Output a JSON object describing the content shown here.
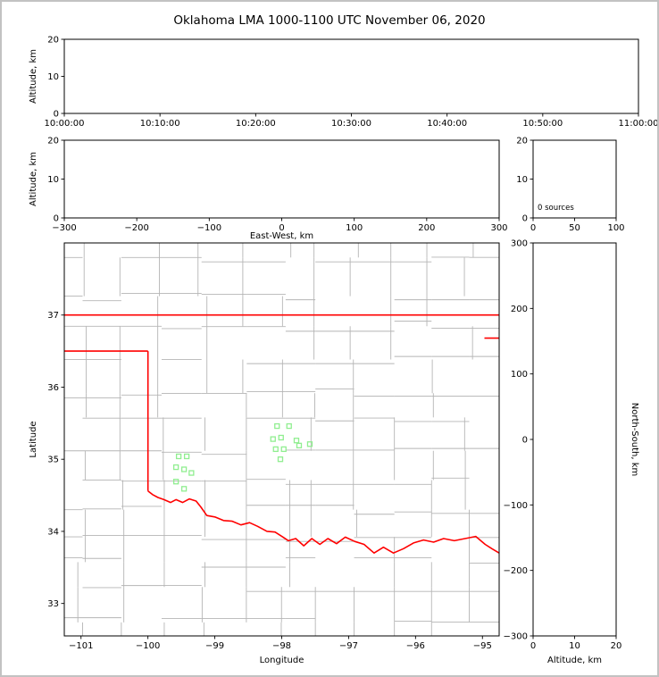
{
  "title": "Oklahoma LMA 1000-1100 UTC November 06, 2020",
  "colors": {
    "axis": "#000000",
    "state_border": "#ff0000",
    "county_line": "#b5b5b5",
    "source_marker": "#90ee90",
    "figure_frame": "#c2c2c2",
    "background": "#ffffff"
  },
  "chart_data": [
    {
      "id": "time_altitude",
      "type": "scatter",
      "title": "",
      "xlabel": "",
      "ylabel": "Altitude, km",
      "x_tick_labels": [
        "10:00:00",
        "10:10:00",
        "10:20:00",
        "10:30:00",
        "10:40:00",
        "10:50:00",
        "11:00:00"
      ],
      "ylim": [
        0,
        20
      ],
      "y_ticks": [
        0,
        10,
        20
      ],
      "points": []
    },
    {
      "id": "ew_altitude",
      "type": "scatter",
      "xlabel": "East-West, km",
      "ylabel": "Altitude, km",
      "xlim": [
        -300,
        300
      ],
      "x_ticks": [
        -300,
        -200,
        -100,
        0,
        100,
        200,
        300
      ],
      "ylim": [
        0,
        20
      ],
      "y_ticks": [
        0,
        10,
        20
      ],
      "points": []
    },
    {
      "id": "altitude_histogram",
      "type": "line",
      "xlabel": "",
      "ylabel": "",
      "xlim": [
        0,
        100
      ],
      "x_ticks": [
        0,
        50,
        100
      ],
      "ylim": [
        0,
        20
      ],
      "y_ticks": [
        0,
        10,
        20
      ],
      "annotation": "0 sources",
      "points": []
    },
    {
      "id": "map",
      "type": "scatter",
      "xlabel": "Longitude",
      "ylabel": "Latitude",
      "xlim": [
        -101.25,
        -94.75
      ],
      "x_ticks": [
        -101,
        -100,
        -99,
        -98,
        -97,
        -96,
        -95
      ],
      "ylim": [
        32.55,
        38.0
      ],
      "y_ticks": [
        33,
        34,
        35,
        36,
        37
      ],
      "sources": [
        [
          -98.07,
          35.46
        ],
        [
          -97.89,
          35.46
        ],
        [
          -98.13,
          35.28
        ],
        [
          -98.01,
          35.3
        ],
        [
          -97.78,
          35.26
        ],
        [
          -98.09,
          35.14
        ],
        [
          -97.97,
          35.14
        ],
        [
          -98.02,
          35.0
        ],
        [
          -97.74,
          35.19
        ],
        [
          -97.58,
          35.21
        ],
        [
          -99.54,
          35.04
        ],
        [
          -99.42,
          35.04
        ],
        [
          -99.58,
          34.89
        ],
        [
          -99.46,
          34.86
        ],
        [
          -99.35,
          34.81
        ],
        [
          -99.58,
          34.69
        ],
        [
          -99.46,
          34.59
        ]
      ],
      "state_border": {
        "oklahoma_kansas": [
          [
            -101.25,
            37.0
          ],
          [
            -94.75,
            37.0
          ]
        ],
        "panhandle_south": [
          [
            -101.25,
            36.5
          ],
          [
            -100.0,
            36.5
          ]
        ],
        "texas_meridian": [
          [
            -100.0,
            36.5
          ],
          [
            -100.0,
            34.56
          ]
        ],
        "red_river": [
          [
            -100.0,
            34.56
          ],
          [
            -99.93,
            34.51
          ],
          [
            -99.85,
            34.47
          ],
          [
            -99.76,
            34.44
          ],
          [
            -99.66,
            34.4
          ],
          [
            -99.58,
            34.44
          ],
          [
            -99.48,
            34.4
          ],
          [
            -99.38,
            34.45
          ],
          [
            -99.28,
            34.42
          ],
          [
            -99.21,
            34.34
          ],
          [
            -99.12,
            34.22
          ],
          [
            -99.0,
            34.2
          ],
          [
            -98.87,
            34.15
          ],
          [
            -98.74,
            34.14
          ],
          [
            -98.61,
            34.09
          ],
          [
            -98.48,
            34.12
          ],
          [
            -98.36,
            34.07
          ],
          [
            -98.22,
            34.0
          ],
          [
            -98.1,
            33.99
          ],
          [
            -97.98,
            33.92
          ],
          [
            -97.9,
            33.87
          ],
          [
            -97.79,
            33.9
          ],
          [
            -97.67,
            33.8
          ],
          [
            -97.55,
            33.9
          ],
          [
            -97.43,
            33.82
          ],
          [
            -97.31,
            33.9
          ],
          [
            -97.18,
            33.83
          ],
          [
            -97.05,
            33.92
          ],
          [
            -96.91,
            33.86
          ],
          [
            -96.77,
            33.82
          ],
          [
            -96.62,
            33.7
          ],
          [
            -96.48,
            33.78
          ],
          [
            -96.33,
            33.7
          ],
          [
            -96.18,
            33.76
          ],
          [
            -96.03,
            33.84
          ],
          [
            -95.88,
            33.88
          ],
          [
            -95.73,
            33.85
          ],
          [
            -95.58,
            33.9
          ],
          [
            -95.42,
            33.87
          ],
          [
            -95.26,
            33.9
          ],
          [
            -95.1,
            33.93
          ],
          [
            -94.96,
            33.82
          ],
          [
            -94.86,
            33.76
          ],
          [
            -94.75,
            33.7
          ]
        ],
        "missouri_arkansas": [
          [
            -94.97,
            36.68
          ],
          [
            -94.75,
            36.68
          ]
        ]
      }
    },
    {
      "id": "ns_altitude",
      "type": "scatter",
      "xlabel": "Altitude, km",
      "ylabel": "North-South, km",
      "xlim": [
        0,
        20
      ],
      "x_ticks": [
        0,
        10,
        20
      ],
      "ylim": [
        -300,
        300
      ],
      "y_ticks": [
        300,
        200,
        100,
        0,
        -100,
        -200,
        -300
      ],
      "points": []
    }
  ]
}
